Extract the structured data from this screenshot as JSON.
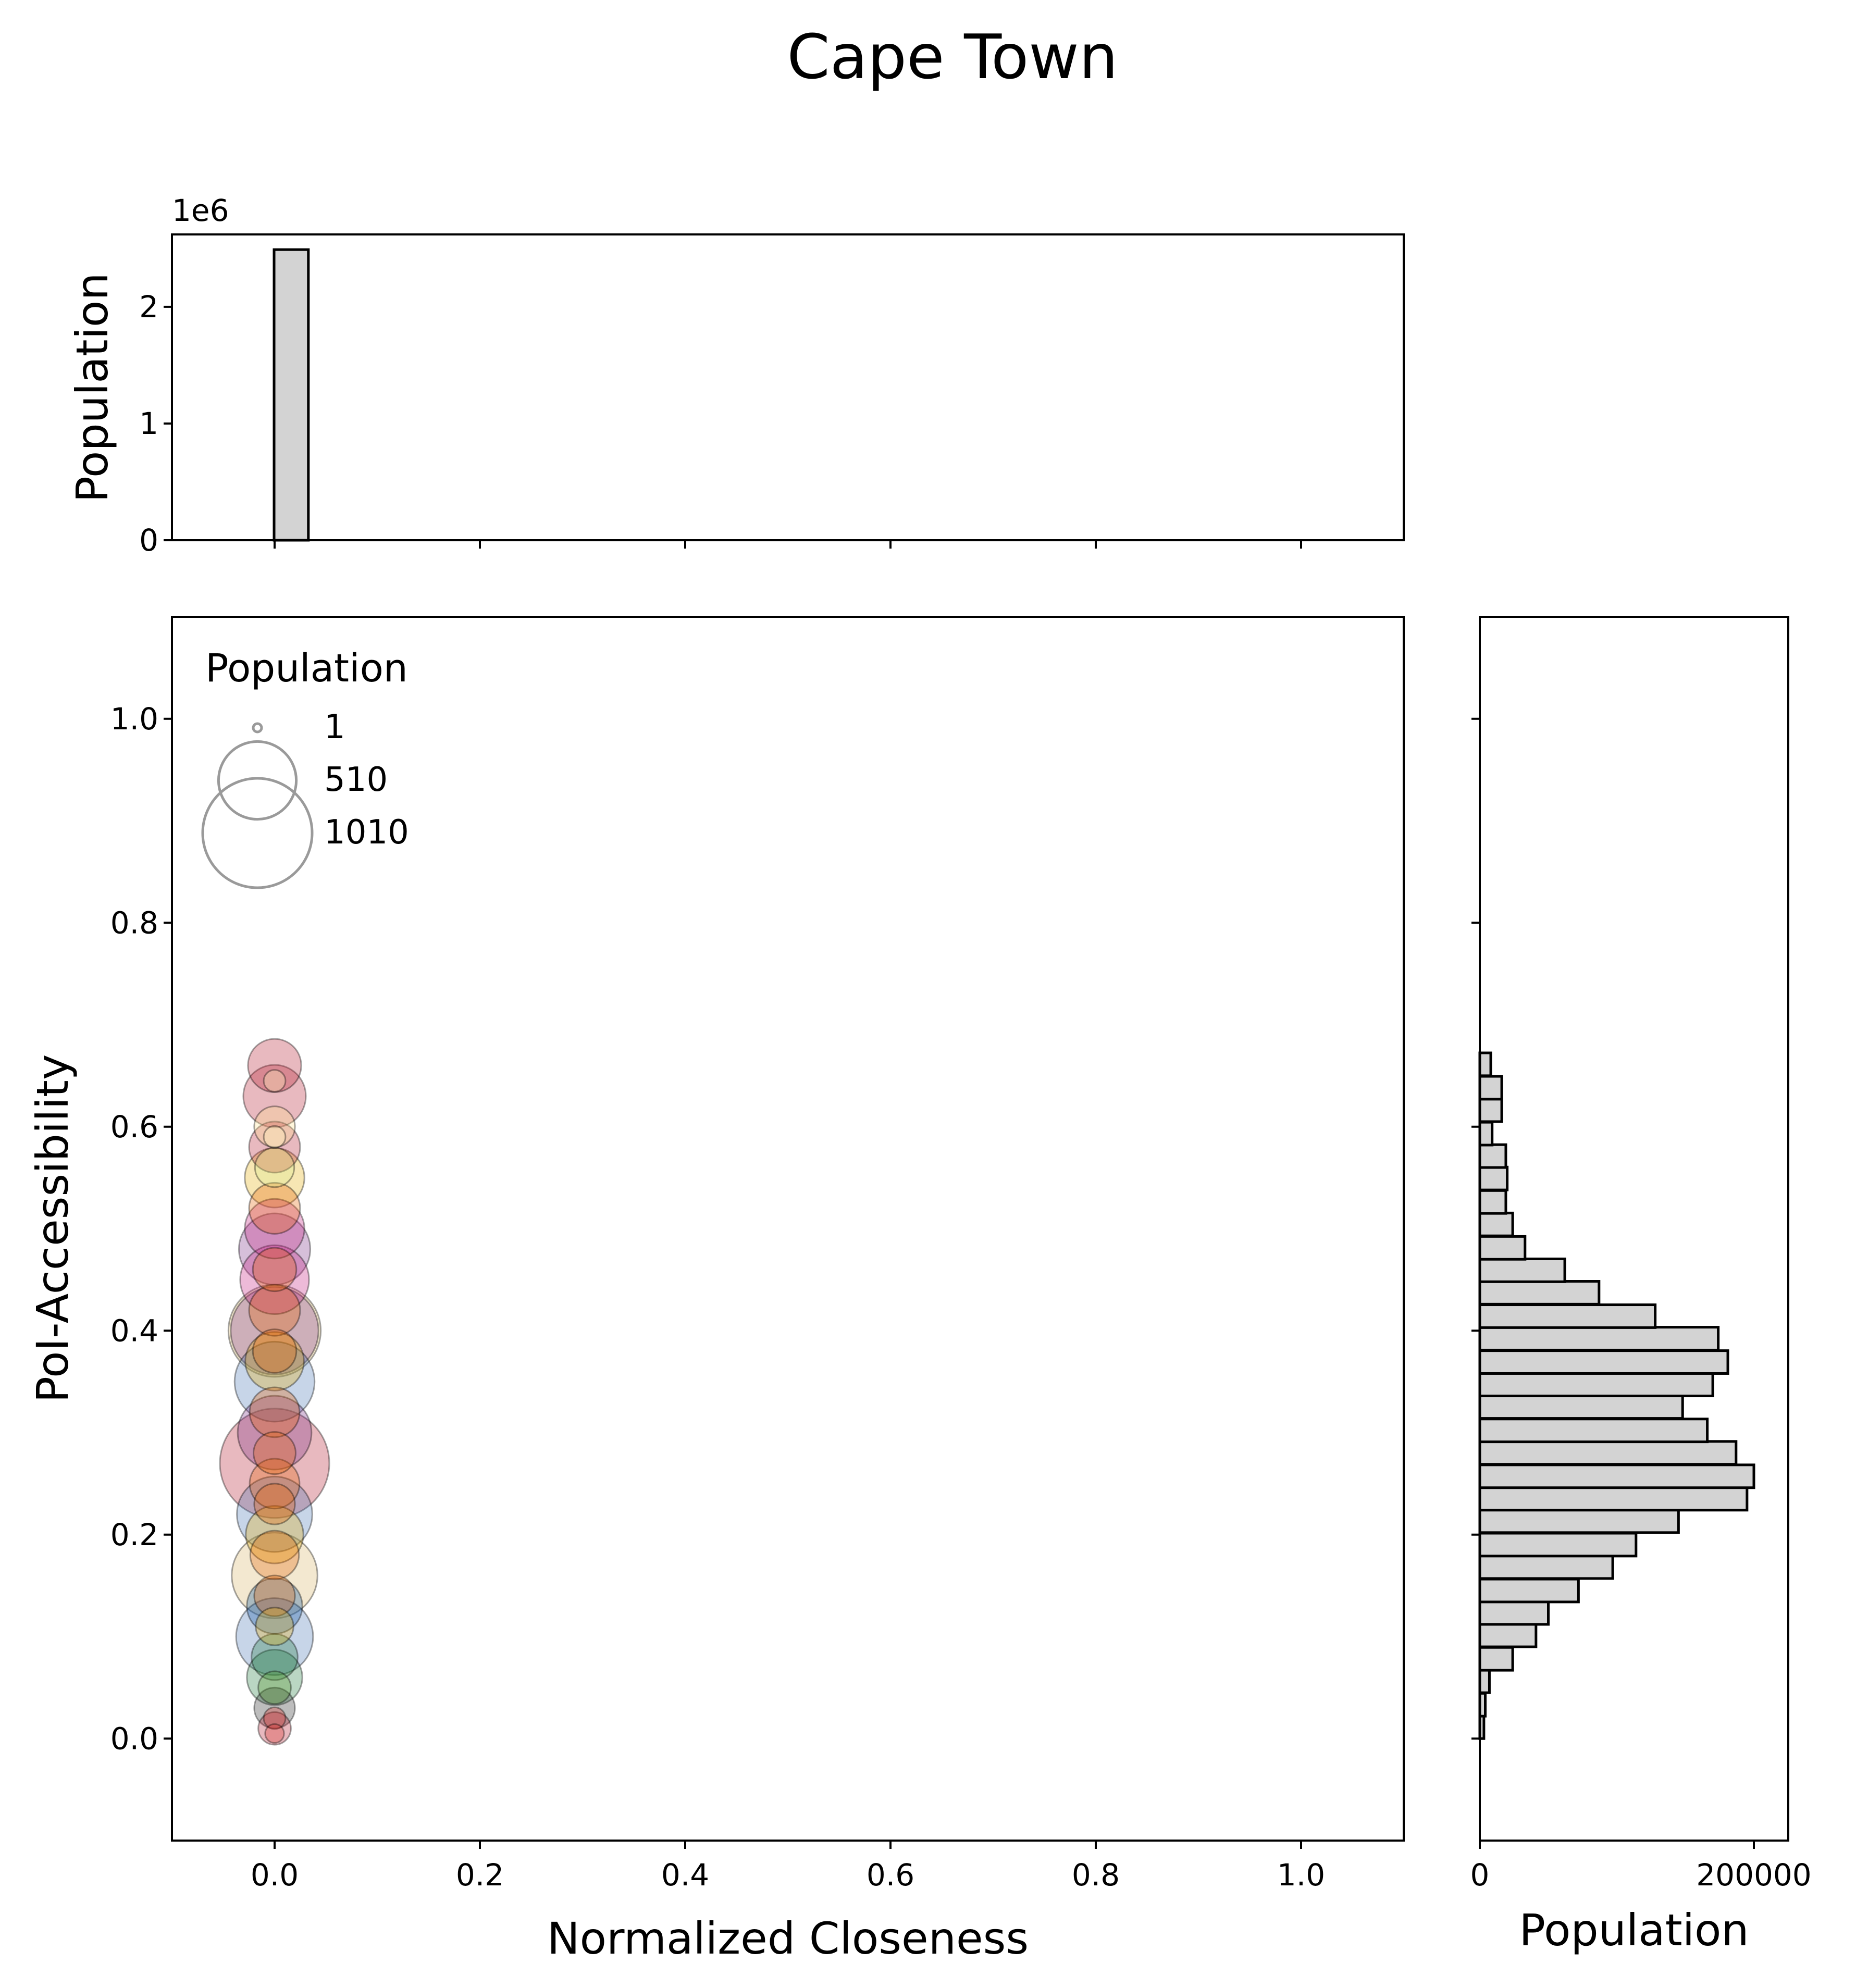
{
  "chart_data": [
    {
      "id": "top-histogram",
      "type": "bar",
      "offset_text": "1e6",
      "ylabel": "Population",
      "xlim": [
        -0.1,
        1.1
      ],
      "ylim": [
        0,
        2620000
      ],
      "yticks": [
        0,
        1,
        2
      ],
      "xticks": [
        0.0,
        0.2,
        0.4,
        0.6,
        0.8,
        1.0
      ],
      "bins": [
        {
          "x0": -0.0005,
          "x1": 0.0329,
          "value": 2490000
        }
      ],
      "bar_color": "#d3d3d3",
      "edge_color": "#000000"
    },
    {
      "id": "main-scatter",
      "type": "scatter",
      "title": "Cape Town",
      "xlabel": "Normalized Closeness",
      "ylabel": "PoI-Accessibility",
      "xlim": [
        -0.1,
        1.1
      ],
      "ylim": [
        -0.1,
        1.1
      ],
      "xticks": [
        "0.0",
        "0.2",
        "0.4",
        "0.6",
        "0.8",
        "1.0"
      ],
      "yticks": [
        "0.0",
        "0.2",
        "0.4",
        "0.6",
        "0.8",
        "1.0"
      ],
      "grid": false,
      "size_legend": {
        "title": "Population",
        "placement": "upper-left",
        "entries": [
          {
            "label": "1",
            "value": 1
          },
          {
            "label": "510",
            "value": 510
          },
          {
            "label": "1010",
            "value": 1010
          }
        ]
      },
      "points": [
        {
          "x": 0.0,
          "y": 0.27,
          "pop": 1010,
          "color": "#b2182b"
        },
        {
          "x": 0.0,
          "y": 0.4,
          "pop": 720,
          "color": "#d8b365"
        },
        {
          "x": 0.0,
          "y": 0.4,
          "pop": 650,
          "color": "#762a83"
        },
        {
          "x": 0.0,
          "y": 0.16,
          "pop": 620,
          "color": "#d8b365"
        },
        {
          "x": 0.0,
          "y": 0.35,
          "pop": 540,
          "color": "#4575b4"
        },
        {
          "x": 0.0,
          "y": 0.1,
          "pop": 500,
          "color": "#4575b4"
        },
        {
          "x": 0.0,
          "y": 0.22,
          "pop": 480,
          "color": "#4575b4"
        },
        {
          "x": 0.0,
          "y": 0.3,
          "pop": 460,
          "color": "#762a83"
        },
        {
          "x": 0.0,
          "y": 0.48,
          "pop": 430,
          "color": "#762a83"
        },
        {
          "x": 0.0,
          "y": 0.45,
          "pop": 400,
          "color": "#c51b7d"
        },
        {
          "x": 0.0,
          "y": 0.63,
          "pop": 330,
          "color": "#b2182b"
        },
        {
          "x": 0.0,
          "y": 0.55,
          "pop": 300,
          "color": "#e6ab02"
        },
        {
          "x": 0.0,
          "y": 0.5,
          "pop": 300,
          "color": "#c51b7d"
        },
        {
          "x": 0.0,
          "y": 0.37,
          "pop": 290,
          "color": "#e6ab02"
        },
        {
          "x": 0.0,
          "y": 0.2,
          "pop": 280,
          "color": "#e6ab02"
        },
        {
          "x": 0.0,
          "y": 0.06,
          "pop": 260,
          "color": "#1b7837"
        },
        {
          "x": 0.0,
          "y": 0.13,
          "pop": 260,
          "color": "#08519c"
        },
        {
          "x": 0.0,
          "y": 0.66,
          "pop": 240,
          "color": "#b2182b"
        },
        {
          "x": 0.0,
          "y": 0.58,
          "pop": 220,
          "color": "#b2182b"
        },
        {
          "x": 0.0,
          "y": 0.52,
          "pop": 220,
          "color": "#e66101"
        },
        {
          "x": 0.0,
          "y": 0.42,
          "pop": 220,
          "color": "#e66101"
        },
        {
          "x": 0.0,
          "y": 0.32,
          "pop": 210,
          "color": "#e66101"
        },
        {
          "x": 0.0,
          "y": 0.25,
          "pop": 210,
          "color": "#e66101"
        },
        {
          "x": 0.0,
          "y": 0.18,
          "pop": 200,
          "color": "#e66101"
        },
        {
          "x": 0.0,
          "y": 0.08,
          "pop": 180,
          "color": "#1b7837"
        },
        {
          "x": 0.0,
          "y": 0.03,
          "pop": 140,
          "color": "#252525"
        },
        {
          "x": 0.0,
          "y": 0.01,
          "pop": 90,
          "color": "#b2182b"
        },
        {
          "x": 0.0,
          "y": 0.6,
          "pop": 140,
          "color": "#fee08b"
        },
        {
          "x": 0.0,
          "y": 0.56,
          "pop": 130,
          "color": "#d9ef8b"
        },
        {
          "x": 0.0,
          "y": 0.46,
          "pop": 160,
          "color": "#e66101"
        },
        {
          "x": 0.0,
          "y": 0.38,
          "pop": 160,
          "color": "#e66101"
        },
        {
          "x": 0.0,
          "y": 0.28,
          "pop": 150,
          "color": "#e66101"
        },
        {
          "x": 0.0,
          "y": 0.23,
          "pop": 140,
          "color": "#e66101"
        },
        {
          "x": 0.0,
          "y": 0.14,
          "pop": 140,
          "color": "#e66101"
        },
        {
          "x": 0.0,
          "y": 0.11,
          "pop": 120,
          "color": "#e6ab02"
        },
        {
          "x": 0.0,
          "y": 0.05,
          "pop": 90,
          "color": "#4d9221"
        },
        {
          "x": 0.0,
          "y": 0.645,
          "pop": 40,
          "color": "#ffffbf"
        },
        {
          "x": 0.0,
          "y": 0.59,
          "pop": 40,
          "color": "#ffffbf"
        },
        {
          "x": 0.0,
          "y": 0.02,
          "pop": 40,
          "color": "#d73027"
        },
        {
          "x": 0.0,
          "y": 0.005,
          "pop": 30,
          "color": "#d73027"
        }
      ]
    },
    {
      "id": "right-histogram",
      "type": "bar",
      "orientation": "horizontal",
      "xlabel": "Population",
      "xlim": [
        0,
        200000
      ],
      "xticks": [
        "0",
        "200000"
      ],
      "ylim": [
        -0.1,
        1.1
      ],
      "bin_width": 0.0224,
      "bins": [
        {
          "y0": 0.0,
          "value": 3000
        },
        {
          "y0": 0.022,
          "value": 4000
        },
        {
          "y0": 0.045,
          "value": 7000
        },
        {
          "y0": 0.067,
          "value": 24000
        },
        {
          "y0": 0.09,
          "value": 41000
        },
        {
          "y0": 0.112,
          "value": 50000
        },
        {
          "y0": 0.134,
          "value": 72000
        },
        {
          "y0": 0.157,
          "value": 97000
        },
        {
          "y0": 0.179,
          "value": 114000
        },
        {
          "y0": 0.202,
          "value": 145000
        },
        {
          "y0": 0.224,
          "value": 195000
        },
        {
          "y0": 0.246,
          "value": 200000
        },
        {
          "y0": 0.269,
          "value": 187000
        },
        {
          "y0": 0.291,
          "value": 166000
        },
        {
          "y0": 0.314,
          "value": 148000
        },
        {
          "y0": 0.336,
          "value": 170000
        },
        {
          "y0": 0.358,
          "value": 181000
        },
        {
          "y0": 0.381,
          "value": 174000
        },
        {
          "y0": 0.403,
          "value": 128000
        },
        {
          "y0": 0.426,
          "value": 87000
        },
        {
          "y0": 0.448,
          "value": 62000
        },
        {
          "y0": 0.47,
          "value": 33000
        },
        {
          "y0": 0.493,
          "value": 24000
        },
        {
          "y0": 0.515,
          "value": 19000
        },
        {
          "y0": 0.538,
          "value": 20000
        },
        {
          "y0": 0.56,
          "value": 19000
        },
        {
          "y0": 0.582,
          "value": 9000
        },
        {
          "y0": 0.605,
          "value": 16000
        },
        {
          "y0": 0.627,
          "value": 16000
        },
        {
          "y0": 0.65,
          "value": 8000
        }
      ],
      "bar_color": "#d3d3d3",
      "edge_color": "#000000"
    }
  ]
}
